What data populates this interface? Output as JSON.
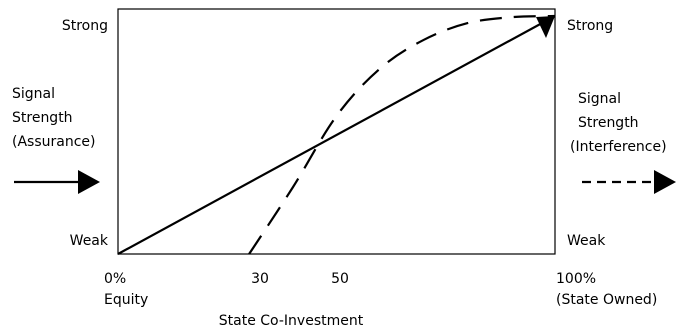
{
  "left_axis": {
    "top_label": "Strong",
    "bottom_label": "Weak",
    "title_lines": [
      "Signal",
      "Strength",
      "(Assurance)"
    ],
    "legend_style": "solid-arrow"
  },
  "right_axis": {
    "top_label": "Strong",
    "bottom_label": "Weak",
    "title_lines": [
      "Signal",
      "Strength",
      "(Interference)"
    ],
    "legend_style": "dashed-arrow"
  },
  "x_axis": {
    "title": "State Co-Investment",
    "ticks": [
      {
        "value": 0,
        "lines": [
          "0%",
          "Equity"
        ]
      },
      {
        "value": 30,
        "lines": [
          "30"
        ]
      },
      {
        "value": 50,
        "lines": [
          "50"
        ]
      },
      {
        "value": 100,
        "lines": [
          "100%",
          "(State Owned)"
        ]
      }
    ]
  },
  "curves": [
    {
      "name": "assurance",
      "style": "solid",
      "x": [
        0,
        100
      ],
      "y": [
        0,
        1
      ]
    },
    {
      "name": "interference",
      "style": "dashed",
      "x": [
        30,
        40,
        50,
        60,
        70,
        80,
        90,
        100
      ],
      "y": [
        0,
        0.28,
        0.58,
        0.78,
        0.9,
        0.97,
        0.995,
        1
      ]
    }
  ]
}
